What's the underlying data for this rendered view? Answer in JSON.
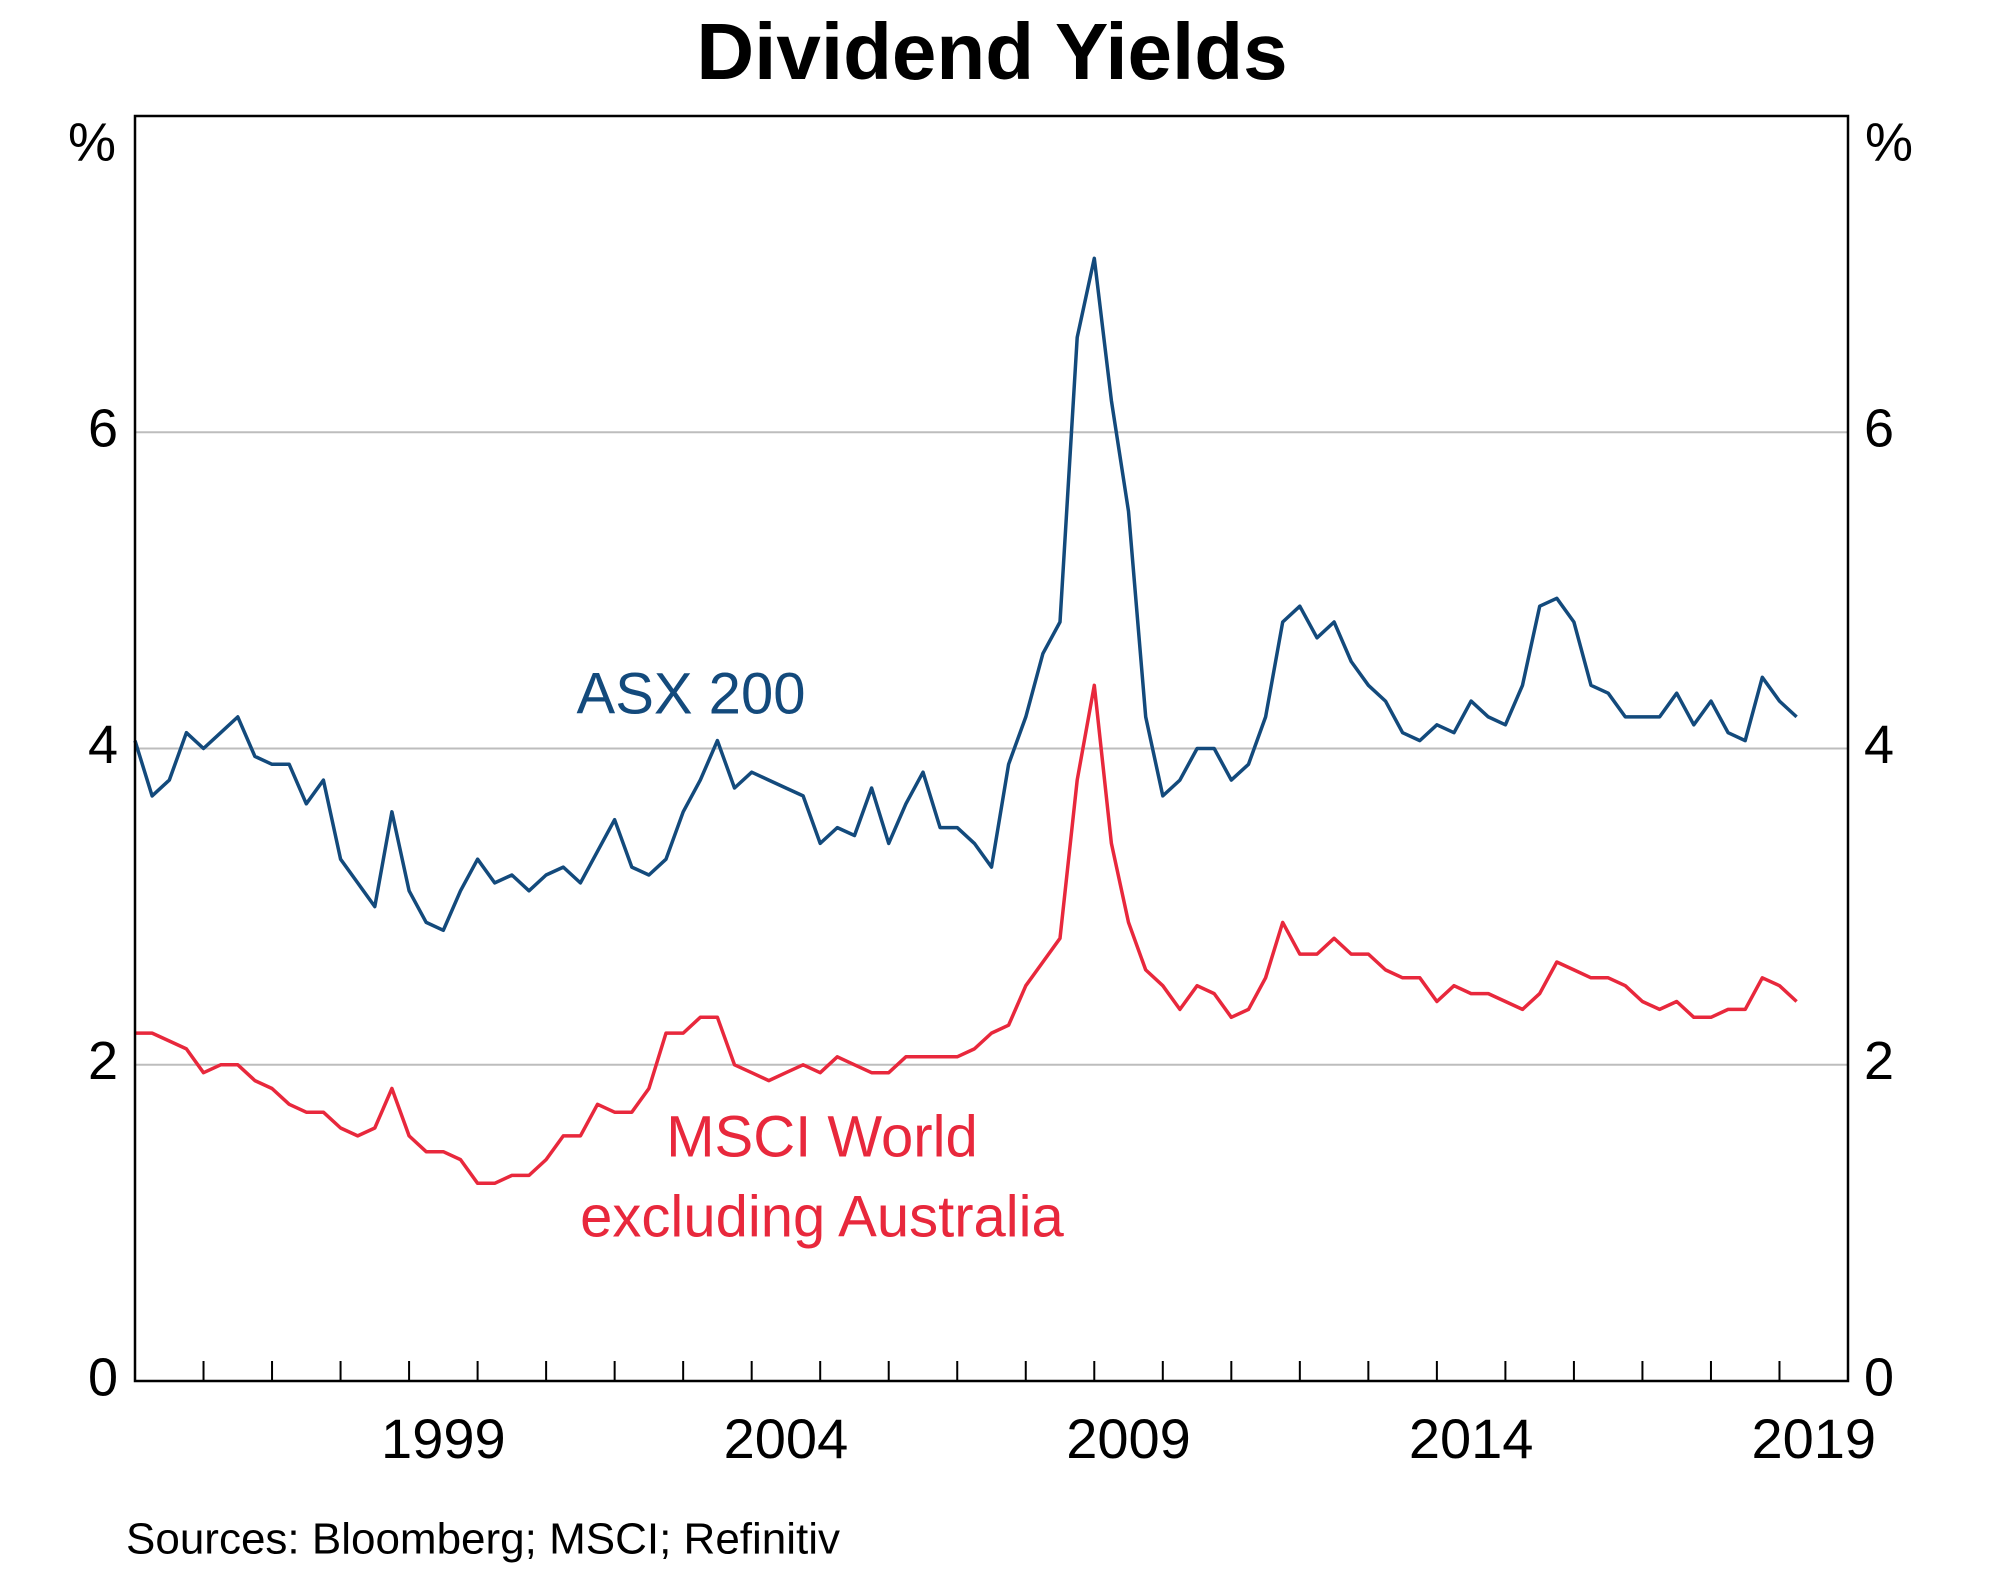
{
  "chart_data": {
    "type": "line",
    "title": "Dividend Yields",
    "y_unit": "%",
    "y2_unit": "%",
    "source": "Sources: Bloomberg; MSCI; Refinitiv",
    "xlim": [
      1995,
      2020
    ],
    "xticks": [
      {
        "value": 1999.5,
        "label": "1999"
      },
      {
        "value": 2004.5,
        "label": "2004"
      },
      {
        "value": 2009.5,
        "label": "2009"
      },
      {
        "value": 2014.5,
        "label": "2014"
      },
      {
        "value": 2019.5,
        "label": "2019"
      }
    ],
    "x_tick_marks": [
      1996,
      1997,
      1998,
      1999,
      2000,
      2001,
      2002,
      2003,
      2004,
      2005,
      2006,
      2007,
      2008,
      2009,
      2010,
      2011,
      2012,
      2013,
      2014,
      2015,
      2016,
      2017,
      2018,
      2019
    ],
    "ylim": [
      0,
      8
    ],
    "yticks": [
      0,
      2,
      4,
      6
    ],
    "y2lim": [
      0,
      8
    ],
    "y2ticks": [
      0,
      2,
      4,
      6
    ],
    "grid": true,
    "x": [
      1995,
      1995.25,
      1995.5,
      1995.75,
      1996,
      1996.25,
      1996.5,
      1996.75,
      1997,
      1997.25,
      1997.5,
      1997.75,
      1998,
      1998.25,
      1998.5,
      1998.75,
      1999,
      1999.25,
      1999.5,
      1999.75,
      2000,
      2000.25,
      2000.5,
      2000.75,
      2001,
      2001.25,
      2001.5,
      2001.75,
      2002,
      2002.25,
      2002.5,
      2002.75,
      2003,
      2003.25,
      2003.5,
      2003.75,
      2004,
      2004.25,
      2004.5,
      2004.75,
      2005,
      2005.25,
      2005.5,
      2005.75,
      2006,
      2006.25,
      2006.5,
      2006.75,
      2007,
      2007.25,
      2007.5,
      2007.75,
      2008,
      2008.25,
      2008.5,
      2008.75,
      2009,
      2009.25,
      2009.5,
      2009.75,
      2010,
      2010.25,
      2010.5,
      2010.75,
      2011,
      2011.25,
      2011.5,
      2011.75,
      2012,
      2012.25,
      2012.5,
      2012.75,
      2013,
      2013.25,
      2013.5,
      2013.75,
      2014,
      2014.25,
      2014.5,
      2014.75,
      2015,
      2015.25,
      2015.5,
      2015.75,
      2016,
      2016.25,
      2016.5,
      2016.75,
      2017,
      2017.25,
      2017.5,
      2017.75,
      2018,
      2018.25,
      2018.5,
      2018.75,
      2019,
      2019.25
    ],
    "series": [
      {
        "name": [
          "ASX 200"
        ],
        "color": "#134a7c",
        "values": [
          4.05,
          3.7,
          3.8,
          4.1,
          4.0,
          4.1,
          4.2,
          3.95,
          3.9,
          3.9,
          3.65,
          3.8,
          3.3,
          3.15,
          3.0,
          3.6,
          3.1,
          2.9,
          2.85,
          3.1,
          3.3,
          3.15,
          3.2,
          3.1,
          3.2,
          3.25,
          3.15,
          3.35,
          3.55,
          3.25,
          3.2,
          3.3,
          3.6,
          3.8,
          4.05,
          3.75,
          3.85,
          3.8,
          3.75,
          3.7,
          3.4,
          3.5,
          3.45,
          3.75,
          3.4,
          3.65,
          3.85,
          3.5,
          3.5,
          3.4,
          3.25,
          3.9,
          4.2,
          4.6,
          4.8,
          6.6,
          7.1,
          6.2,
          5.5,
          4.2,
          3.7,
          3.8,
          4.0,
          4.0,
          3.8,
          3.9,
          4.2,
          4.8,
          4.9,
          4.7,
          4.8,
          4.55,
          4.4,
          4.3,
          4.1,
          4.05,
          4.15,
          4.1,
          4.3,
          4.2,
          4.15,
          4.4,
          4.9,
          4.95,
          4.8,
          4.4,
          4.35,
          4.2,
          4.2,
          4.2,
          4.35,
          4.15,
          4.3,
          4.1,
          4.05,
          4.45,
          4.3,
          4.2
        ]
      },
      {
        "name": [
          "MSCI World",
          "excluding Australia"
        ],
        "color": "#e8283c",
        "values": [
          2.2,
          2.2,
          2.15,
          2.1,
          1.95,
          2.0,
          2.0,
          1.9,
          1.85,
          1.75,
          1.7,
          1.7,
          1.6,
          1.55,
          1.6,
          1.85,
          1.55,
          1.45,
          1.45,
          1.4,
          1.25,
          1.25,
          1.3,
          1.3,
          1.4,
          1.55,
          1.55,
          1.75,
          1.7,
          1.7,
          1.85,
          2.2,
          2.2,
          2.3,
          2.3,
          2.0,
          1.95,
          1.9,
          1.95,
          2.0,
          1.95,
          2.05,
          2.0,
          1.95,
          1.95,
          2.05,
          2.05,
          2.05,
          2.05,
          2.1,
          2.2,
          2.25,
          2.5,
          2.65,
          2.8,
          3.8,
          4.4,
          3.4,
          2.9,
          2.6,
          2.5,
          2.35,
          2.5,
          2.45,
          2.3,
          2.35,
          2.55,
          2.9,
          2.7,
          2.7,
          2.8,
          2.7,
          2.7,
          2.6,
          2.55,
          2.55,
          2.4,
          2.5,
          2.45,
          2.45,
          2.4,
          2.35,
          2.45,
          2.65,
          2.6,
          2.55,
          2.55,
          2.5,
          2.4,
          2.35,
          2.4,
          2.3,
          2.3,
          2.35,
          2.35,
          2.55,
          2.5,
          2.4
        ]
      }
    ]
  }
}
